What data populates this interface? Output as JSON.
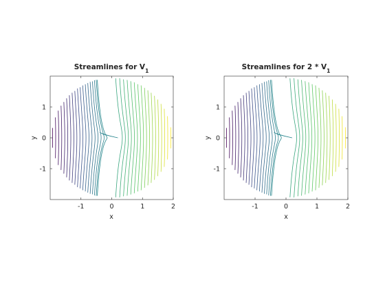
{
  "chart_data": [
    {
      "type": "streamline",
      "title": {
        "main": "Streamlines for V",
        "sub": "1"
      },
      "xlabel": "x",
      "ylabel": "y",
      "xlim": [
        -2,
        2
      ],
      "ylim": [
        -2,
        2
      ],
      "xticks": [
        -1,
        0,
        1,
        2
      ],
      "yticks": [
        -1,
        0,
        1
      ],
      "grid": false,
      "field_scale": 1,
      "domain_radius": 1.95,
      "colormap": [
        "#440154",
        "#3b528b",
        "#21918c",
        "#5ec962",
        "#fde725"
      ]
    },
    {
      "type": "streamline",
      "title": {
        "main": "Streamlines for 2 * V",
        "sub": "1"
      },
      "xlabel": "x",
      "ylabel": "y",
      "xlim": [
        -2,
        2
      ],
      "ylim": [
        -2,
        2
      ],
      "xticks": [
        -1,
        0,
        1,
        2
      ],
      "yticks": [
        -1,
        0,
        1
      ],
      "grid": false,
      "field_scale": 2,
      "domain_radius": 1.95,
      "colormap": [
        "#440154",
        "#3b528b",
        "#21918c",
        "#5ec962",
        "#fde725"
      ]
    }
  ]
}
